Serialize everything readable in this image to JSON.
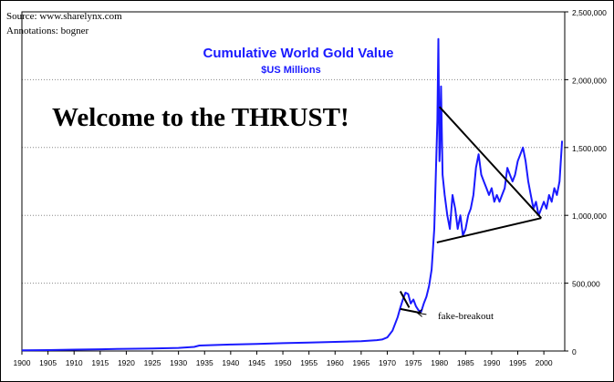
{
  "chart_data": {
    "type": "line",
    "title": "Cumulative World Gold Value",
    "subtitle": "$US Millions",
    "source_note": "Source: www.sharelynx.com",
    "annotations_note": "Annotations: bogner",
    "headline": "Welcome to the THRUST!",
    "breakout_label": "fake-breakout",
    "xlabel": "",
    "ylabel": "",
    "x_ticks": [
      "1900",
      "1905",
      "1910",
      "1915",
      "1920",
      "1925",
      "1930",
      "1935",
      "1940",
      "1945",
      "1950",
      "1955",
      "1960",
      "1965",
      "1970",
      "1975",
      "1980",
      "1985",
      "1990",
      "1995",
      "2000"
    ],
    "y_ticks": [
      "0",
      "500,000",
      "1,000,000",
      "1,500,000",
      "2,000,000",
      "2,500,000"
    ],
    "xlim": [
      1900,
      2004
    ],
    "ylim": [
      0,
      2500000
    ],
    "grid": "horizontal dotted",
    "line_color": "#1a1aff",
    "series": [
      {
        "x": [
          1900,
          1905,
          1910,
          1915,
          1920,
          1925,
          1930,
          1933,
          1934,
          1940,
          1945,
          1950,
          1955,
          1960,
          1965,
          1968,
          1969,
          1970,
          1971,
          1972,
          1972.5,
          1973,
          1973.5,
          1974,
          1974.5,
          1975,
          1975.5,
          1976,
          1976.5,
          1977,
          1977.5,
          1978,
          1978.5,
          1979,
          1979.3,
          1979.6,
          1979.8,
          1980,
          1980.1,
          1980.3,
          1980.6,
          1981,
          1981.5,
          1982,
          1982.5,
          1983,
          1983.5,
          1984,
          1984.5,
          1985,
          1985.5,
          1986,
          1986.5,
          1987,
          1987.5,
          1988,
          1988.5,
          1989,
          1989.5,
          1990,
          1990.5,
          1991,
          1991.5,
          1992,
          1992.5,
          1993,
          1993.5,
          1994,
          1994.5,
          1995,
          1995.5,
          1996,
          1996.5,
          1997,
          1997.5,
          1998,
          1998.5,
          1999,
          1999.5,
          2000,
          2000.5,
          2001,
          2001.5,
          2002,
          2002.5,
          2003,
          2003.5
        ],
        "y": [
          5000,
          7000,
          10000,
          13000,
          16000,
          19000,
          23000,
          30000,
          40000,
          48000,
          52000,
          58000,
          62000,
          67000,
          72000,
          80000,
          85000,
          100000,
          150000,
          250000,
          320000,
          380000,
          430000,
          420000,
          350000,
          380000,
          330000,
          300000,
          290000,
          350000,
          400000,
          480000,
          600000,
          900000,
          1300000,
          1700000,
          2300000,
          1400000,
          1500000,
          1950000,
          1300000,
          1150000,
          1000000,
          900000,
          1150000,
          1050000,
          900000,
          1000000,
          850000,
          900000,
          1000000,
          1050000,
          1150000,
          1350000,
          1450000,
          1300000,
          1250000,
          1200000,
          1150000,
          1200000,
          1100000,
          1150000,
          1100000,
          1150000,
          1200000,
          1350000,
          1300000,
          1250000,
          1300000,
          1400000,
          1450000,
          1500000,
          1400000,
          1250000,
          1150000,
          1050000,
          1100000,
          1000000,
          1050000,
          1100000,
          1050000,
          1150000,
          1100000,
          1200000,
          1150000,
          1250000,
          1550000
        ]
      }
    ],
    "trend_lines": [
      {
        "x": [
          1980,
          1999.5
        ],
        "y": [
          1800000,
          980000
        ]
      },
      {
        "x": [
          1979.5,
          1999.5
        ],
        "y": [
          800000,
          980000
        ]
      },
      {
        "x": [
          1972.5,
          1976.5
        ],
        "y": [
          310000,
          280000
        ]
      },
      {
        "x": [
          1972.5,
          1974.2
        ],
        "y": [
          440000,
          320000
        ]
      }
    ],
    "breakout_arrow": {
      "from_x": 1977.5,
      "from_y": 270000,
      "to_x": 1975.8,
      "to_y": 280000
    }
  }
}
